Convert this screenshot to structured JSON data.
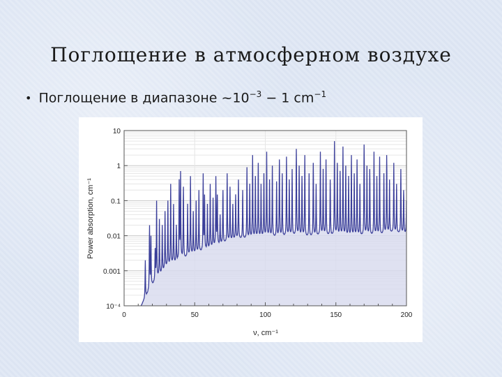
{
  "slide": {
    "title": "Поглощение в атмосферном воздухе",
    "bullet_prefix": "Поглощение в диапазоне ~10",
    "bullet_exp1": "−3",
    "bullet_mid": " − 1 cm",
    "bullet_exp2": "−1"
  },
  "chart_data": {
    "type": "area",
    "xlabel": "ν, cm⁻¹",
    "ylabel": "Power absorption, cm⁻¹",
    "xlim": [
      0,
      200
    ],
    "ylim": [
      0.0001,
      10
    ],
    "yscale": "log",
    "x_ticks": [
      "0",
      "50",
      "100",
      "150",
      "200"
    ],
    "y_ticks": [
      "10⁻⁴",
      "0.001",
      "0.01",
      "0.1",
      "1",
      "10"
    ],
    "grid": true,
    "line_color": "#3b3f9a",
    "fill_color": "#d7d9ee",
    "baseline_envelope": [
      [
        12,
        0.0001
      ],
      [
        20,
        0.0004
      ],
      [
        30,
        0.0012
      ],
      [
        40,
        0.002
      ],
      [
        50,
        0.003
      ],
      [
        60,
        0.004
      ],
      [
        70,
        0.006
      ],
      [
        80,
        0.008
      ],
      [
        90,
        0.008
      ],
      [
        100,
        0.009
      ],
      [
        110,
        0.009
      ],
      [
        120,
        0.01
      ],
      [
        130,
        0.009
      ],
      [
        140,
        0.01
      ],
      [
        150,
        0.01
      ],
      [
        160,
        0.009
      ],
      [
        170,
        0.01
      ],
      [
        180,
        0.01
      ],
      [
        190,
        0.012
      ],
      [
        200,
        0.011
      ]
    ],
    "peaks": [
      [
        15,
        0.002
      ],
      [
        18,
        0.02
      ],
      [
        19,
        0.01
      ],
      [
        22,
        0.004
      ],
      [
        23,
        0.1
      ],
      [
        25,
        0.03
      ],
      [
        27,
        0.02
      ],
      [
        29,
        0.05
      ],
      [
        31,
        0.1
      ],
      [
        33,
        0.3
      ],
      [
        35,
        0.08
      ],
      [
        37,
        0.02
      ],
      [
        39,
        0.4
      ],
      [
        40,
        0.7
      ],
      [
        42,
        0.25
      ],
      [
        45,
        0.08
      ],
      [
        47,
        0.5
      ],
      [
        49,
        0.05
      ],
      [
        51,
        0.1
      ],
      [
        53,
        0.2
      ],
      [
        56,
        0.6
      ],
      [
        57,
        0.15
      ],
      [
        59,
        0.08
      ],
      [
        61,
        0.3
      ],
      [
        63,
        0.12
      ],
      [
        65,
        0.5
      ],
      [
        66,
        0.15
      ],
      [
        68,
        0.04
      ],
      [
        70,
        0.2
      ],
      [
        73,
        0.6
      ],
      [
        75,
        0.25
      ],
      [
        77,
        0.08
      ],
      [
        79,
        0.15
      ],
      [
        81,
        0.4
      ],
      [
        84,
        0.2
      ],
      [
        87,
        0.9
      ],
      [
        89,
        0.3
      ],
      [
        91,
        2.0
      ],
      [
        93,
        0.5
      ],
      [
        95,
        1.2
      ],
      [
        97,
        0.3
      ],
      [
        99,
        0.6
      ],
      [
        101,
        2.5
      ],
      [
        103,
        0.4
      ],
      [
        105,
        1.0
      ],
      [
        108,
        0.35
      ],
      [
        110,
        1.5
      ],
      [
        112,
        0.6
      ],
      [
        115,
        1.8
      ],
      [
        117,
        0.4
      ],
      [
        119,
        0.8
      ],
      [
        122,
        3.0
      ],
      [
        124,
        1.0
      ],
      [
        126,
        0.5
      ],
      [
        128,
        2.0
      ],
      [
        131,
        0.6
      ],
      [
        134,
        1.2
      ],
      [
        136,
        0.3
      ],
      [
        139,
        2.5
      ],
      [
        141,
        0.8
      ],
      [
        143,
        1.5
      ],
      [
        146,
        0.4
      ],
      [
        149,
        5.0
      ],
      [
        151,
        1.2
      ],
      [
        153,
        0.7
      ],
      [
        155,
        3.5
      ],
      [
        157,
        1.0
      ],
      [
        159,
        0.5
      ],
      [
        161,
        2.0
      ],
      [
        163,
        0.6
      ],
      [
        165,
        1.5
      ],
      [
        167,
        0.3
      ],
      [
        170,
        4.0
      ],
      [
        172,
        1.0
      ],
      [
        174,
        0.8
      ],
      [
        177,
        2.5
      ],
      [
        179,
        0.5
      ],
      [
        181,
        1.8
      ],
      [
        184,
        0.6
      ],
      [
        186,
        2.0
      ],
      [
        188,
        0.4
      ],
      [
        191,
        1.2
      ],
      [
        193,
        0.3
      ],
      [
        196,
        0.8
      ],
      [
        198,
        0.2
      ],
      [
        200,
        0.1
      ]
    ]
  }
}
